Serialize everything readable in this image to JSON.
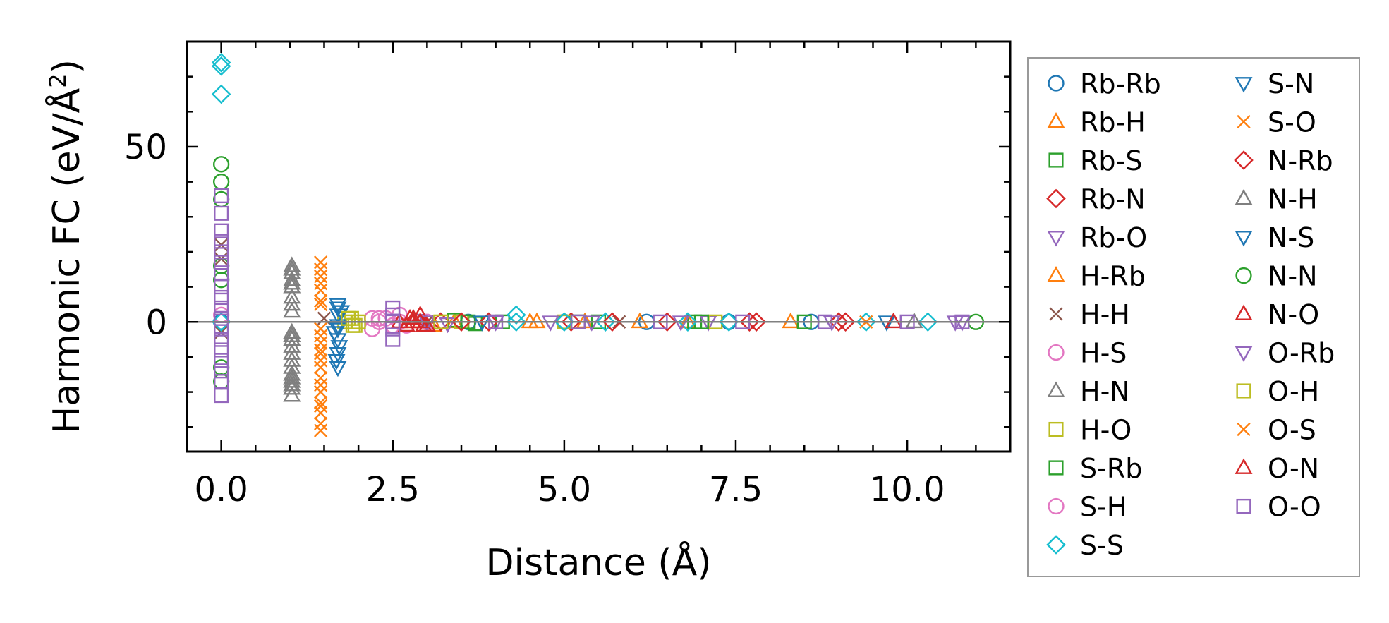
{
  "chart_data": {
    "type": "scatter",
    "xlabel": "Distance (Å)",
    "ylabel_parts": [
      "Harmonic FC (eV/Å",
      "2",
      ")"
    ],
    "xlim": [
      -0.5,
      11.5
    ],
    "ylim": [
      -37,
      80
    ],
    "xticks": [
      0.0,
      2.5,
      5.0,
      7.5,
      10.0
    ],
    "xtick_labels": [
      "0.0",
      "2.5",
      "5.0",
      "7.5",
      "10.0"
    ],
    "yticks": [
      0,
      50
    ],
    "ytick_labels": [
      "0",
      "50"
    ],
    "reference_line_y": 0,
    "grid": false,
    "legend_position": "right, outside",
    "series": [
      {
        "name": "Rb-Rb",
        "marker": "circle",
        "color": "#1f77b4",
        "points": [
          [
            0,
            0
          ],
          [
            3.6,
            0
          ],
          [
            5.0,
            0
          ],
          [
            6.2,
            0
          ],
          [
            7.4,
            0
          ],
          [
            8.6,
            0
          ]
        ]
      },
      {
        "name": "Rb-H",
        "marker": "triangle-up",
        "color": "#ff7f0e",
        "points": [
          [
            2.8,
            0
          ],
          [
            3.1,
            -1
          ],
          [
            3.4,
            0
          ],
          [
            4.5,
            0
          ],
          [
            5.3,
            0
          ],
          [
            6.8,
            0
          ]
        ]
      },
      {
        "name": "Rb-S",
        "marker": "square",
        "color": "#2ca02c",
        "points": [
          [
            3.4,
            0.5
          ],
          [
            3.7,
            -0.5
          ],
          [
            4.1,
            0
          ],
          [
            5.5,
            0
          ],
          [
            6.9,
            0
          ]
        ]
      },
      {
        "name": "Rb-N",
        "marker": "diamond",
        "color": "#d62728",
        "points": [
          [
            3.2,
            0
          ],
          [
            3.9,
            0
          ],
          [
            5.1,
            0
          ],
          [
            6.5,
            0
          ],
          [
            7.7,
            0
          ],
          [
            9.0,
            0
          ]
        ]
      },
      {
        "name": "Rb-O",
        "marker": "triangle-down",
        "color": "#9467bd",
        "points": [
          [
            2.9,
            0.5
          ],
          [
            3.3,
            -0.5
          ],
          [
            4.0,
            0
          ],
          [
            5.4,
            0
          ],
          [
            7.1,
            0
          ],
          [
            10.8,
            0
          ]
        ]
      },
      {
        "name": "H-Rb",
        "marker": "triangle-up",
        "color": "#ff7f0e",
        "points": [
          [
            2.9,
            0
          ],
          [
            4.6,
            0
          ],
          [
            6.1,
            0
          ],
          [
            8.3,
            0
          ]
        ]
      },
      {
        "name": "H-H",
        "marker": "x",
        "color": "#8c564b",
        "points": [
          [
            0,
            22
          ],
          [
            0,
            18
          ],
          [
            0,
            -3
          ],
          [
            1.5,
            1
          ],
          [
            3.0,
            0
          ],
          [
            5.8,
            0
          ]
        ]
      },
      {
        "name": "H-S",
        "marker": "circle",
        "color": "#e377c2",
        "points": [
          [
            0,
            2
          ],
          [
            2.2,
            1
          ],
          [
            2.2,
            -2
          ],
          [
            2.3,
            0
          ],
          [
            2.4,
            1
          ],
          [
            2.6,
            2
          ],
          [
            2.7,
            -1
          ],
          [
            3.0,
            0
          ]
        ]
      },
      {
        "name": "H-N",
        "marker": "triangle-up",
        "color": "#7f7f7f",
        "points": [
          [
            1.03,
            16
          ],
          [
            1.03,
            14
          ],
          [
            1.03,
            12
          ],
          [
            1.03,
            10
          ],
          [
            1.03,
            7
          ],
          [
            1.03,
            5
          ],
          [
            1.03,
            -3
          ],
          [
            1.03,
            -5
          ],
          [
            1.03,
            -7
          ],
          [
            1.03,
            -9
          ],
          [
            1.03,
            -11
          ],
          [
            1.03,
            -13
          ],
          [
            1.03,
            -15
          ],
          [
            1.03,
            -17
          ],
          [
            1.03,
            -19
          ],
          [
            1.03,
            -21
          ]
        ]
      },
      {
        "name": "H-O",
        "marker": "square",
        "color": "#bcbd22",
        "points": [
          [
            1.8,
            0
          ],
          [
            1.9,
            1
          ],
          [
            1.95,
            -1
          ],
          [
            2.0,
            0
          ],
          [
            3.5,
            0
          ],
          [
            5.0,
            0
          ],
          [
            7.2,
            0
          ]
        ]
      },
      {
        "name": "S-Rb",
        "marker": "square",
        "color": "#2ca02c",
        "points": [
          [
            3.6,
            0
          ],
          [
            5.2,
            0
          ],
          [
            7.0,
            0
          ],
          [
            8.5,
            0
          ]
        ]
      },
      {
        "name": "S-H",
        "marker": "circle",
        "color": "#e377c2",
        "points": [
          [
            2.3,
            1
          ],
          [
            2.5,
            -1
          ],
          [
            2.6,
            0
          ]
        ]
      },
      {
        "name": "S-S",
        "marker": "diamond",
        "color": "#17becf",
        "points": [
          [
            0,
            74
          ],
          [
            0,
            73
          ],
          [
            0,
            65
          ],
          [
            0,
            0
          ],
          [
            4.3,
            2
          ],
          [
            4.3,
            0
          ],
          [
            5.0,
            0
          ],
          [
            5.6,
            0
          ],
          [
            6.8,
            0
          ],
          [
            7.4,
            0
          ],
          [
            9.4,
            0
          ],
          [
            10.3,
            0
          ]
        ]
      },
      {
        "name": "S-N",
        "marker": "triangle-down",
        "color": "#1f77b4",
        "points": [
          [
            1.7,
            4
          ],
          [
            1.7,
            2
          ],
          [
            1.7,
            -1
          ],
          [
            1.65,
            -3
          ],
          [
            1.7,
            -5
          ],
          [
            1.72,
            -7
          ],
          [
            1.7,
            -9
          ],
          [
            1.68,
            -11
          ],
          [
            1.7,
            -13
          ],
          [
            3.8,
            0
          ],
          [
            9.7,
            0
          ]
        ]
      },
      {
        "name": "S-O",
        "marker": "x",
        "color": "#ff7f0e",
        "points": [
          [
            1.45,
            17
          ],
          [
            1.45,
            13
          ],
          [
            1.45,
            11
          ],
          [
            1.45,
            6
          ],
          [
            1.45,
            -4
          ],
          [
            1.45,
            -6
          ],
          [
            1.45,
            -8
          ],
          [
            1.45,
            -11
          ],
          [
            1.45,
            -13
          ],
          [
            1.45,
            -16
          ],
          [
            1.45,
            -20
          ],
          [
            1.45,
            -23
          ],
          [
            1.45,
            -26
          ],
          [
            1.45,
            -29
          ],
          [
            1.45,
            -31
          ],
          [
            9.4,
            0
          ]
        ]
      },
      {
        "name": "N-Rb",
        "marker": "diamond",
        "color": "#d62728",
        "points": [
          [
            3.5,
            0
          ],
          [
            5.7,
            0
          ],
          [
            7.8,
            0
          ],
          [
            9.1,
            0
          ]
        ]
      },
      {
        "name": "N-H",
        "marker": "triangle-up",
        "color": "#7f7f7f",
        "points": [
          [
            1.03,
            15
          ],
          [
            1.03,
            11
          ],
          [
            1.03,
            3
          ],
          [
            1.03,
            -4
          ],
          [
            1.03,
            -16
          ],
          [
            1.03,
            -18
          ],
          [
            10.1,
            0
          ]
        ]
      },
      {
        "name": "N-S",
        "marker": "triangle-down",
        "color": "#1f77b4",
        "points": [
          [
            1.7,
            5
          ],
          [
            1.75,
            3
          ],
          [
            1.7,
            -2
          ]
        ]
      },
      {
        "name": "N-N",
        "marker": "circle",
        "color": "#2ca02c",
        "points": [
          [
            0,
            45
          ],
          [
            0,
            40
          ],
          [
            0,
            35
          ],
          [
            0,
            16
          ],
          [
            0,
            12
          ],
          [
            0,
            -13
          ],
          [
            0,
            -17
          ],
          [
            11.0,
            0
          ]
        ]
      },
      {
        "name": "N-O",
        "marker": "triangle-up",
        "color": "#d62728",
        "points": [
          [
            2.6,
            0
          ],
          [
            2.7,
            -1
          ],
          [
            2.75,
            1
          ],
          [
            2.8,
            0
          ],
          [
            2.9,
            2
          ],
          [
            2.95,
            -1
          ],
          [
            9.8,
            0
          ]
        ]
      },
      {
        "name": "O-Rb",
        "marker": "triangle-down",
        "color": "#9467bd",
        "points": [
          [
            3.0,
            0
          ],
          [
            4.8,
            0
          ],
          [
            6.7,
            0
          ],
          [
            8.9,
            0
          ],
          [
            10.7,
            0
          ]
        ]
      },
      {
        "name": "O-H",
        "marker": "square",
        "color": "#bcbd22",
        "points": [
          [
            1.85,
            1
          ],
          [
            1.92,
            -1
          ],
          [
            3.2,
            0
          ]
        ]
      },
      {
        "name": "O-S",
        "marker": "x",
        "color": "#ff7f0e",
        "points": [
          [
            1.45,
            15
          ],
          [
            1.45,
            9
          ],
          [
            1.45,
            5
          ],
          [
            1.45,
            -2
          ],
          [
            1.45,
            -9
          ],
          [
            1.45,
            -18
          ],
          [
            1.45,
            -24
          ]
        ]
      },
      {
        "name": "O-N",
        "marker": "triangle-up",
        "color": "#d62728",
        "points": [
          [
            2.8,
            1
          ],
          [
            2.9,
            0
          ],
          [
            3.0,
            -1
          ]
        ]
      },
      {
        "name": "O-O",
        "marker": "square",
        "color": "#9467bd",
        "points": [
          [
            0,
            36
          ],
          [
            0,
            31
          ],
          [
            0,
            26
          ],
          [
            0,
            23
          ],
          [
            0,
            20
          ],
          [
            0,
            17
          ],
          [
            0,
            14
          ],
          [
            0,
            10
          ],
          [
            0,
            7
          ],
          [
            0,
            4
          ],
          [
            0,
            1
          ],
          [
            0,
            -2
          ],
          [
            0,
            -5
          ],
          [
            0,
            -8
          ],
          [
            0,
            -11
          ],
          [
            0,
            -14
          ],
          [
            0,
            -17
          ],
          [
            0,
            -21
          ],
          [
            2.5,
            4
          ],
          [
            2.5,
            2
          ],
          [
            2.5,
            0
          ],
          [
            2.5,
            -2
          ],
          [
            2.5,
            -5
          ],
          [
            4.0,
            0
          ],
          [
            5.2,
            0
          ],
          [
            6.4,
            0
          ],
          [
            7.6,
            0
          ],
          [
            8.8,
            0
          ],
          [
            10.0,
            0
          ],
          [
            10.8,
            0
          ]
        ]
      }
    ]
  }
}
